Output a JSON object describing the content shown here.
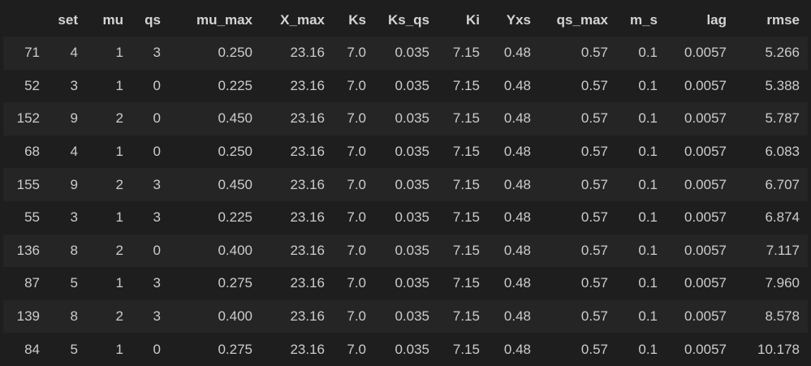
{
  "columns": [
    "",
    "set",
    "mu",
    "qs",
    "mu_max",
    "X_max",
    "Ks",
    "Ks_qs",
    "Ki",
    "Yxs",
    "qs_max",
    "m_s",
    "lag",
    "rmse"
  ],
  "rows": [
    [
      "71",
      "4",
      "1",
      "3",
      "0.250",
      "23.16",
      "7.0",
      "0.035",
      "7.15",
      "0.48",
      "0.57",
      "0.1",
      "0.0057",
      "5.266"
    ],
    [
      "52",
      "3",
      "1",
      "0",
      "0.225",
      "23.16",
      "7.0",
      "0.035",
      "7.15",
      "0.48",
      "0.57",
      "0.1",
      "0.0057",
      "5.388"
    ],
    [
      "152",
      "9",
      "2",
      "0",
      "0.450",
      "23.16",
      "7.0",
      "0.035",
      "7.15",
      "0.48",
      "0.57",
      "0.1",
      "0.0057",
      "5.787"
    ],
    [
      "68",
      "4",
      "1",
      "0",
      "0.250",
      "23.16",
      "7.0",
      "0.035",
      "7.15",
      "0.48",
      "0.57",
      "0.1",
      "0.0057",
      "6.083"
    ],
    [
      "155",
      "9",
      "2",
      "3",
      "0.450",
      "23.16",
      "7.0",
      "0.035",
      "7.15",
      "0.48",
      "0.57",
      "0.1",
      "0.0057",
      "6.707"
    ],
    [
      "55",
      "3",
      "1",
      "3",
      "0.225",
      "23.16",
      "7.0",
      "0.035",
      "7.15",
      "0.48",
      "0.57",
      "0.1",
      "0.0057",
      "6.874"
    ],
    [
      "136",
      "8",
      "2",
      "0",
      "0.400",
      "23.16",
      "7.0",
      "0.035",
      "7.15",
      "0.48",
      "0.57",
      "0.1",
      "0.0057",
      "7.117"
    ],
    [
      "87",
      "5",
      "1",
      "3",
      "0.275",
      "23.16",
      "7.0",
      "0.035",
      "7.15",
      "0.48",
      "0.57",
      "0.1",
      "0.0057",
      "7.960"
    ],
    [
      "139",
      "8",
      "2",
      "3",
      "0.400",
      "23.16",
      "7.0",
      "0.035",
      "7.15",
      "0.48",
      "0.57",
      "0.1",
      "0.0057",
      "8.578"
    ],
    [
      "84",
      "5",
      "1",
      "0",
      "0.275",
      "23.16",
      "7.0",
      "0.035",
      "7.15",
      "0.48",
      "0.57",
      "0.1",
      "0.0057",
      "10.178"
    ]
  ],
  "colors": {
    "background": "#1e1e1e",
    "row_stripe": "#252526",
    "text": "#cccccc",
    "header_text": "#d4d4d4"
  }
}
